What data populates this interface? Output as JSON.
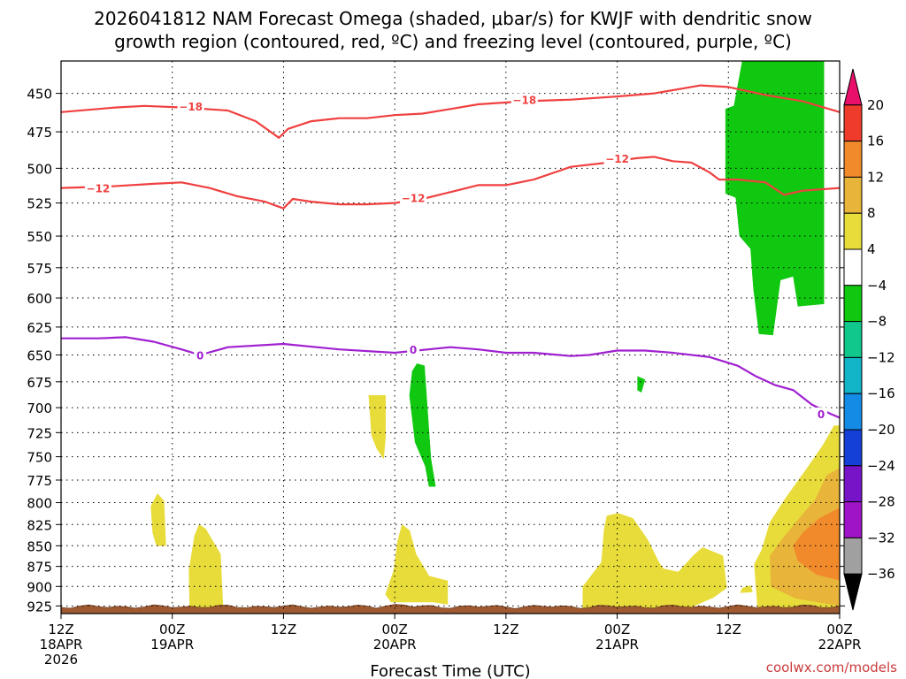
{
  "chart_data": {
    "type": "time-height cross-section",
    "title_line1": "2026041812 NAM Forecast Omega (shaded, μbar/s) for KWJF with dendritic snow",
    "title_line2": "growth region (contoured, red, ºC) and freezing level (contoured, purple, ºC)",
    "xlabel": "Forecast Time (UTC)",
    "credit": "coolwx.com/models",
    "x_range_hours": [
      0,
      84
    ],
    "y_range_hpa": [
      430,
      935
    ],
    "y_ticks": [
      450,
      475,
      500,
      525,
      550,
      575,
      600,
      625,
      650,
      675,
      700,
      725,
      750,
      775,
      800,
      825,
      850,
      875,
      900,
      925
    ],
    "x_ticks": [
      {
        "hour": 0,
        "lines": [
          "12Z",
          "18APR",
          "2026"
        ]
      },
      {
        "hour": 12,
        "lines": [
          "00Z",
          "19APR"
        ]
      },
      {
        "hour": 24,
        "lines": [
          "12Z"
        ]
      },
      {
        "hour": 36,
        "lines": [
          "00Z",
          "20APR"
        ]
      },
      {
        "hour": 48,
        "lines": [
          "12Z"
        ]
      },
      {
        "hour": 60,
        "lines": [
          "00Z",
          "21APR"
        ]
      },
      {
        "hour": 72,
        "lines": [
          "12Z"
        ]
      },
      {
        "hour": 84,
        "lines": [
          "00Z",
          "22APR"
        ]
      }
    ],
    "colorbar": {
      "labels": [
        "20",
        "16",
        "12",
        "8",
        "4",
        "−4",
        "−8",
        "−12",
        "−16",
        "−20",
        "−24",
        "−28",
        "−32",
        "−36"
      ],
      "colors": [
        "#e8106a",
        "#ef3b2c",
        "#f08a2b",
        "#e8b43a",
        "#e8dc3a",
        "#ffffff",
        "#10c810",
        "#10c88c",
        "#12b4c8",
        "#148ce6",
        "#1440d8",
        "#7814c8",
        "#a014c8",
        "#a0a0a0",
        "#000000"
      ]
    },
    "contours": [
      {
        "name": "-18 C",
        "label": "−18",
        "color": "#f04040",
        "points": [
          [
            0,
            462
          ],
          [
            6,
            459
          ],
          [
            9,
            458
          ],
          [
            13,
            459
          ],
          [
            18,
            461
          ],
          [
            21,
            468
          ],
          [
            23.5,
            479
          ],
          [
            24.5,
            473
          ],
          [
            27,
            468
          ],
          [
            30,
            466
          ],
          [
            33,
            466
          ],
          [
            36,
            464
          ],
          [
            39,
            463
          ],
          [
            42,
            460
          ],
          [
            45,
            457
          ],
          [
            50,
            455
          ],
          [
            55,
            454
          ],
          [
            60,
            452
          ],
          [
            64,
            450
          ],
          [
            66,
            448
          ],
          [
            69,
            445
          ],
          [
            72,
            446
          ],
          [
            76,
            451
          ],
          [
            80,
            455
          ],
          [
            84,
            462
          ]
        ],
        "label_positions": [
          [
            14,
            458
          ],
          [
            50,
            454
          ]
        ]
      },
      {
        "name": "-12 C",
        "label": "−12",
        "color": "#f04040",
        "points": [
          [
            0,
            514
          ],
          [
            5,
            513
          ],
          [
            10,
            511
          ],
          [
            13,
            510
          ],
          [
            16,
            514
          ],
          [
            19,
            520
          ],
          [
            22,
            524
          ],
          [
            24,
            529
          ],
          [
            25,
            522
          ],
          [
            27,
            524
          ],
          [
            30,
            526
          ],
          [
            33,
            526
          ],
          [
            36,
            525
          ],
          [
            39,
            522
          ],
          [
            42,
            517
          ],
          [
            45,
            512
          ],
          [
            48,
            512
          ],
          [
            51,
            508
          ],
          [
            55,
            499
          ],
          [
            59,
            496
          ],
          [
            62,
            493
          ],
          [
            64,
            492
          ],
          [
            66,
            495
          ],
          [
            68,
            496
          ],
          [
            70,
            503
          ],
          [
            71,
            508
          ],
          [
            73,
            508
          ],
          [
            76,
            510
          ],
          [
            78,
            519
          ],
          [
            80,
            516
          ],
          [
            84,
            514
          ]
        ],
        "label_positions": [
          [
            4,
            514
          ],
          [
            38,
            521
          ],
          [
            60,
            493
          ]
        ]
      },
      {
        "name": "0 C freezing level",
        "label": "0",
        "color": "#a020d0",
        "points": [
          [
            0,
            635
          ],
          [
            4,
            635
          ],
          [
            7,
            634
          ],
          [
            10,
            638
          ],
          [
            13,
            645
          ],
          [
            15,
            650
          ],
          [
            18,
            643
          ],
          [
            24,
            640
          ],
          [
            30,
            645
          ],
          [
            36,
            648
          ],
          [
            42,
            643
          ],
          [
            45,
            645
          ],
          [
            48,
            648
          ],
          [
            51,
            648
          ],
          [
            55,
            651
          ],
          [
            57,
            650
          ],
          [
            60,
            646
          ],
          [
            63,
            646
          ],
          [
            66,
            648
          ],
          [
            70,
            652
          ],
          [
            73,
            660
          ],
          [
            75,
            670
          ],
          [
            77,
            678
          ],
          [
            79,
            683
          ],
          [
            81,
            697
          ],
          [
            83,
            706
          ],
          [
            84,
            710
          ]
        ],
        "label_positions": [
          [
            15,
            650
          ],
          [
            38,
            645
          ],
          [
            82,
            706
          ]
        ]
      }
    ],
    "omega_regions": [
      {
        "level": "-4 to -8",
        "color": "#10c810",
        "polygons": [
          [
            [
              73.5,
              430
            ],
            [
              82.3,
              430
            ],
            [
              82.3,
              605
            ],
            [
              79.5,
              607
            ],
            [
              79,
              582
            ],
            [
              77.6,
              585
            ],
            [
              76.8,
              632
            ],
            [
              75.3,
              631
            ],
            [
              74.7,
              592
            ],
            [
              74.4,
              560
            ],
            [
              73.2,
              550
            ],
            [
              72.8,
              521
            ],
            [
              71.7,
              518
            ],
            [
              71.7,
              460
            ],
            [
              72.6,
              458
            ],
            [
              73.5,
              430
            ]
          ],
          [
            [
              38.4,
              658
            ],
            [
              39.2,
              660
            ],
            [
              39.9,
              752
            ],
            [
              40.4,
              782
            ],
            [
              39.7,
              782
            ],
            [
              39.3,
              760
            ],
            [
              38.2,
              735
            ],
            [
              37.6,
              688
            ],
            [
              37.9,
              665
            ],
            [
              38.4,
              658
            ]
          ],
          [
            [
              62.2,
              670
            ],
            [
              63.0,
              673
            ],
            [
              62.6,
              685
            ],
            [
              62.2,
              683
            ],
            [
              62.2,
              670
            ]
          ]
        ]
      },
      {
        "level": "4 to 8",
        "color": "#e8dc3a",
        "polygons": [
          [
            [
              33.2,
              688
            ],
            [
              35.0,
              688
            ],
            [
              35.0,
              730
            ],
            [
              34.8,
              752
            ],
            [
              34.1,
              742
            ],
            [
              33.5,
              728
            ],
            [
              33.2,
              688
            ]
          ],
          [
            [
              10.4,
              790
            ],
            [
              11.1,
              798
            ],
            [
              11.3,
              850
            ],
            [
              10.3,
              850
            ],
            [
              9.9,
              835
            ],
            [
              9.7,
              804
            ],
            [
              10.4,
              790
            ]
          ],
          [
            [
              14.9,
              825
            ],
            [
              15.6,
              830
            ],
            [
              17.2,
              860
            ],
            [
              17.5,
              935
            ],
            [
              13.9,
              935
            ],
            [
              13.8,
              880
            ],
            [
              14.4,
              838
            ],
            [
              14.9,
              825
            ]
          ],
          [
            [
              36.8,
              825
            ],
            [
              37.6,
              832
            ],
            [
              38.3,
              860
            ],
            [
              39.7,
              887
            ],
            [
              41.7,
              893
            ],
            [
              41.7,
              923
            ],
            [
              40.2,
              920
            ],
            [
              35.6,
              920
            ],
            [
              35.0,
              910
            ],
            [
              35.9,
              880
            ],
            [
              36.3,
              845
            ],
            [
              36.8,
              825
            ]
          ],
          [
            [
              58.9,
              815
            ],
            [
              60.1,
              812
            ],
            [
              61.7,
              818
            ],
            [
              63.3,
              843
            ],
            [
              64.5,
              870
            ],
            [
              65.0,
              878
            ],
            [
              66.6,
              882
            ],
            [
              68.2,
              862
            ],
            [
              69.2,
              852
            ],
            [
              71.4,
              862
            ],
            [
              71.8,
              902
            ],
            [
              70.4,
              914
            ],
            [
              68.1,
              926
            ],
            [
              60.7,
              935
            ],
            [
              56.3,
              935
            ],
            [
              56.3,
              900
            ],
            [
              58.3,
              870
            ],
            [
              58.6,
              830
            ],
            [
              58.9,
              815
            ]
          ],
          [
            [
              84,
              718
            ],
            [
              83.4,
              718
            ],
            [
              82.2,
              738
            ],
            [
              80.5,
              762
            ],
            [
              78.1,
              796
            ],
            [
              76.5,
              822
            ],
            [
              75.6,
              855
            ],
            [
              74.8,
              872
            ],
            [
              75.2,
              935
            ],
            [
              84,
              935
            ]
          ],
          [
            [
              73.5,
              902
            ],
            [
              74.4,
              899
            ],
            [
              74.6,
              907
            ],
            [
              73.3,
              908
            ],
            [
              73.5,
              902
            ]
          ]
        ]
      },
      {
        "level": "8 to 12",
        "color": "#e8b43a",
        "polygons": [
          [
            [
              84,
              762
            ],
            [
              82.6,
              770
            ],
            [
              81.4,
              796
            ],
            [
              79.8,
              816
            ],
            [
              78.1,
              838
            ],
            [
              76.5,
              862
            ],
            [
              76.6,
              900
            ],
            [
              79.2,
              915
            ],
            [
              84,
              925
            ]
          ]
        ]
      },
      {
        "level": "12 to 16",
        "color": "#f08a2b",
        "polygons": [
          [
            [
              84,
              806
            ],
            [
              81.8,
              818
            ],
            [
              80.1,
              834
            ],
            [
              79.0,
              850
            ],
            [
              79.5,
              868
            ],
            [
              81.5,
              885
            ],
            [
              84,
              892
            ]
          ],
          [
            [
              81.2,
              832
            ],
            [
              82.8,
              836
            ],
            [
              83.0,
              858
            ],
            [
              81.6,
              858
            ],
            [
              81.2,
              845
            ],
            [
              81.2,
              832
            ]
          ]
        ]
      }
    ],
    "terrain_color": "#a05a32"
  }
}
